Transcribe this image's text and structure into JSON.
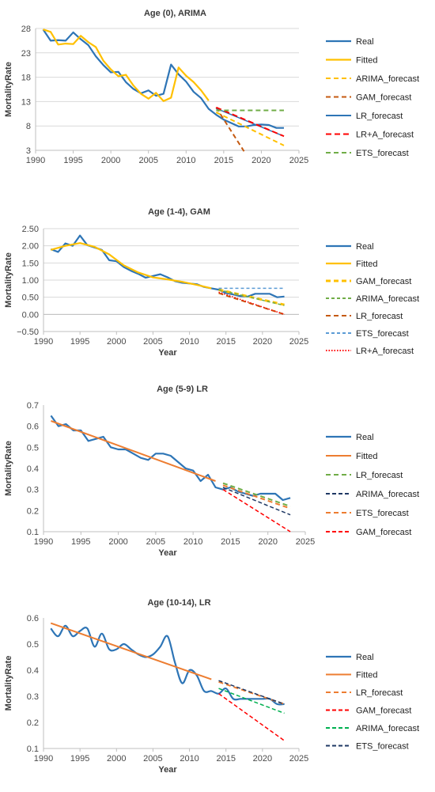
{
  "chart_data": [
    {
      "type": "line",
      "title": "Age (0), ARIMA",
      "ylabel": "MortalityRate",
      "xlabel": "",
      "xlim": [
        1990,
        2025
      ],
      "ylim": [
        3,
        28
      ],
      "xticks": [
        "1990",
        "1995",
        "2000",
        "2005",
        "2010",
        "2015",
        "2020",
        "2025"
      ],
      "yticks": [
        "3",
        "8",
        "13",
        "18",
        "23",
        "28"
      ],
      "grid": "horizontal",
      "legend_position": "right",
      "series": [
        {
          "name": "Real",
          "color": "#2e75b6",
          "dash": "solid",
          "width": 2.2,
          "x": [
            1991,
            1992,
            1993,
            1994,
            1995,
            1996,
            1997,
            1998,
            1999,
            2000,
            2001,
            2002,
            2003,
            2004,
            2005,
            2006,
            2007,
            2008,
            2009,
            2010,
            2011,
            2012,
            2013,
            2014,
            2015,
            2016,
            2017,
            2018,
            2019,
            2020,
            2021,
            2022,
            2023
          ],
          "y": [
            27.8,
            25.5,
            25.6,
            25.5,
            27.2,
            25.8,
            24.6,
            22.3,
            20.5,
            19.0,
            19.1,
            17.0,
            15.6,
            14.7,
            15.3,
            14.2,
            14.6,
            20.6,
            18.6,
            17.1,
            15.0,
            13.7,
            11.5,
            10.3,
            9.3,
            8.6,
            7.9,
            7.9,
            8.2,
            8.3,
            8.2,
            7.6,
            7.6
          ]
        },
        {
          "name": "Fitted",
          "color": "#ffc000",
          "dash": "solid",
          "width": 2.2,
          "x": [
            1991,
            1992,
            1993,
            1994,
            1995,
            1996,
            1997,
            1998,
            1999,
            2000,
            2001,
            2002,
            2003,
            2004,
            2005,
            2006,
            2007,
            2008,
            2009,
            2010,
            2011,
            2012,
            2013
          ],
          "y": [
            27.8,
            27.3,
            24.7,
            24.9,
            24.8,
            26.5,
            25.2,
            24.2,
            21.4,
            19.6,
            18.2,
            18.5,
            16.3,
            14.6,
            13.6,
            14.8,
            13.1,
            13.8,
            20.0,
            18.3,
            17.0,
            15.3,
            13.2
          ]
        },
        {
          "name": "ARIMA_forecast",
          "color": "#ffc000",
          "dash": "6,4",
          "width": 2,
          "x": [
            2014,
            2023
          ],
          "y": [
            10.8,
            4.0
          ]
        },
        {
          "name": "GAM_forecast",
          "color": "#c55a11",
          "dash": "6,4",
          "width": 2,
          "x": [
            2014,
            2017.7
          ],
          "y": [
            11.8,
            2.8
          ]
        },
        {
          "name": "LR_forecast",
          "color": "#2e75b6",
          "dash": "solid",
          "width": 1.5,
          "x": [
            2014,
            2023
          ],
          "y": [
            11.6,
            5.9
          ]
        },
        {
          "name": "LR+A_forecast",
          "color": "#ff0000",
          "dash": "7,4",
          "width": 2,
          "x": [
            2014,
            2023
          ],
          "y": [
            11.8,
            5.9
          ]
        },
        {
          "name": "ETS_forecast",
          "color": "#70ad47",
          "dash": "6,4",
          "width": 2,
          "x": [
            2014,
            2023
          ],
          "y": [
            11.2,
            11.2
          ]
        }
      ]
    },
    {
      "type": "line",
      "title": "Age (1-4), GAM",
      "ylabel": "MortalityRate",
      "xlabel": "Year",
      "xlim": [
        1990,
        2025
      ],
      "ylim": [
        -0.5,
        2.5
      ],
      "xticks": [
        "1990",
        "1995",
        "2000",
        "2005",
        "2010",
        "2015",
        "2020",
        "2025"
      ],
      "yticks": [
        "−0.50",
        "0.00",
        "0.50",
        "1.00",
        "1.50",
        "2.00",
        "2.50"
      ],
      "grid": "horizontal",
      "legend_position": "right",
      "series": [
        {
          "name": "Real",
          "color": "#2e75b6",
          "dash": "solid",
          "width": 2.2,
          "x": [
            1991,
            1992,
            1993,
            1994,
            1995,
            1996,
            1997,
            1998,
            1999,
            2000,
            2001,
            2002,
            2003,
            2004,
            2005,
            2006,
            2007,
            2008,
            2009,
            2010,
            2011,
            2012,
            2013,
            2014,
            2015,
            2016,
            2017,
            2018,
            2019,
            2020,
            2021,
            2022,
            2023
          ],
          "y": [
            1.9,
            1.82,
            2.07,
            2.0,
            2.3,
            2.02,
            1.95,
            1.88,
            1.58,
            1.55,
            1.38,
            1.27,
            1.18,
            1.07,
            1.12,
            1.17,
            1.08,
            0.97,
            0.92,
            0.9,
            0.88,
            0.8,
            0.76,
            0.72,
            0.62,
            0.58,
            0.53,
            0.52,
            0.6,
            0.6,
            0.6,
            0.5,
            0.52
          ]
        },
        {
          "name": "Fitted",
          "color": "#ffc000",
          "dash": "solid",
          "width": 2.2,
          "x": [
            1991,
            1993,
            1995,
            1997,
            1999,
            2001,
            2003,
            2005,
            2007,
            2009,
            2011,
            2013
          ],
          "y": [
            1.88,
            2.0,
            2.08,
            1.97,
            1.75,
            1.43,
            1.22,
            1.08,
            1.02,
            0.95,
            0.86,
            0.76
          ]
        },
        {
          "name": "GAM_forecast",
          "color": "#ffc000",
          "dash": "6,4",
          "width": 3,
          "x": [
            2014,
            2023
          ],
          "y": [
            0.72,
            0.28
          ]
        },
        {
          "name": "ARIMA_forecast",
          "color": "#70ad47",
          "dash": "4,3",
          "width": 1.5,
          "x": [
            2014,
            2023
          ],
          "y": [
            0.72,
            0.26
          ]
        },
        {
          "name": "LR_forecast",
          "color": "#c55a11",
          "dash": "6,4",
          "width": 2,
          "x": [
            2014,
            2023
          ],
          "y": [
            0.62,
            0.0
          ]
        },
        {
          "name": "ETS_forecast",
          "color": "#5b9bd5",
          "dash": "4,3",
          "width": 1.5,
          "x": [
            2014,
            2023
          ],
          "y": [
            0.76,
            0.76
          ]
        },
        {
          "name": "LR+A_forecast",
          "color": "#ff0000",
          "dash": "1.5,2",
          "width": 1.5,
          "x": [
            2014,
            2023
          ],
          "y": [
            0.65,
            0.0
          ]
        }
      ]
    },
    {
      "type": "line",
      "title": "Age (5-9) LR",
      "ylabel": "MortalityRate",
      "xlabel": "Year",
      "xlim": [
        1990,
        2025
      ],
      "ylim": [
        0.1,
        0.7
      ],
      "xticks": [
        "1990",
        "1995",
        "2000",
        "2005",
        "2010",
        "2015",
        "2020",
        "2025"
      ],
      "yticks": [
        "0.1",
        "0.2",
        "0.3",
        "0.4",
        "0.5",
        "0.6",
        "0.7"
      ],
      "grid": "none",
      "legend_position": "right",
      "series": [
        {
          "name": "Real",
          "color": "#2e75b6",
          "dash": "solid",
          "width": 2.2,
          "x": [
            1991,
            1992,
            1993,
            1994,
            1995,
            1996,
            1997,
            1998,
            1999,
            2000,
            2001,
            2002,
            2003,
            2004,
            2005,
            2006,
            2007,
            2008,
            2009,
            2010,
            2011,
            2012,
            2013,
            2014,
            2015,
            2016,
            2017,
            2018,
            2019,
            2020,
            2021,
            2022,
            2023
          ],
          "y": [
            0.65,
            0.6,
            0.61,
            0.58,
            0.58,
            0.53,
            0.54,
            0.55,
            0.5,
            0.49,
            0.49,
            0.47,
            0.45,
            0.44,
            0.47,
            0.47,
            0.46,
            0.43,
            0.4,
            0.39,
            0.34,
            0.37,
            0.31,
            0.3,
            0.31,
            0.29,
            0.28,
            0.27,
            0.28,
            0.28,
            0.28,
            0.25,
            0.26
          ]
        },
        {
          "name": "Fitted",
          "color": "#ed7d31",
          "dash": "solid",
          "width": 2,
          "x": [
            1991,
            2013
          ],
          "y": [
            0.625,
            0.34
          ]
        },
        {
          "name": "LR_forecast",
          "color": "#70ad47",
          "dash": "6,4",
          "width": 2,
          "x": [
            2014,
            2023
          ],
          "y": [
            0.33,
            0.22
          ]
        },
        {
          "name": "ARIMA_forecast",
          "color": "#1f3864",
          "dash": "5,3",
          "width": 1.5,
          "x": [
            2014,
            2023
          ],
          "y": [
            0.31,
            0.18
          ]
        },
        {
          "name": "ETS_forecast",
          "color": "#ed7d31",
          "dash": "6,4",
          "width": 2,
          "x": [
            2014,
            2023
          ],
          "y": [
            0.32,
            0.21
          ]
        },
        {
          "name": "GAM_forecast",
          "color": "#ff0000",
          "dash": "5,3",
          "width": 1.5,
          "x": [
            2014,
            2023
          ],
          "y": [
            0.3,
            0.1
          ]
        }
      ]
    },
    {
      "type": "line",
      "title": "Age (10-14), LR",
      "ylabel": "MortalityRate",
      "xlabel": "Year",
      "xlim": [
        1990,
        2025
      ],
      "ylim": [
        0.1,
        0.6
      ],
      "xticks": [
        "1990",
        "1995",
        "2000",
        "2005",
        "2010",
        "2015",
        "2020",
        "2025"
      ],
      "yticks": [
        "0.1",
        "0.2",
        "0.3",
        "0.4",
        "0.5",
        "0.6"
      ],
      "grid": "none",
      "legend_position": "right",
      "series": [
        {
          "name": "Real",
          "color": "#2e75b6",
          "dash": "solid",
          "width": 2.2,
          "smooth": true,
          "x": [
            1991,
            1992,
            1993,
            1994,
            1995,
            1996,
            1997,
            1998,
            1999,
            2000,
            2001,
            2002,
            2003,
            2004,
            2005,
            2006,
            2007,
            2008,
            2009,
            2010,
            2011,
            2012,
            2013,
            2014,
            2015,
            2016,
            2017,
            2018,
            2019,
            2020,
            2021,
            2022,
            2023
          ],
          "y": [
            0.56,
            0.53,
            0.57,
            0.53,
            0.55,
            0.56,
            0.49,
            0.54,
            0.48,
            0.48,
            0.5,
            0.48,
            0.46,
            0.45,
            0.46,
            0.49,
            0.53,
            0.43,
            0.35,
            0.4,
            0.38,
            0.32,
            0.32,
            0.31,
            0.33,
            0.29,
            0.29,
            0.29,
            0.29,
            0.29,
            0.29,
            0.27,
            0.27
          ]
        },
        {
          "name": "Fitted",
          "color": "#ed7d31",
          "dash": "solid",
          "width": 2,
          "x": [
            1991,
            2013
          ],
          "y": [
            0.58,
            0.365
          ]
        },
        {
          "name": "LR_forecast",
          "color": "#ed7d31",
          "dash": "6,4",
          "width": 2,
          "x": [
            2014,
            2023
          ],
          "y": [
            0.355,
            0.27
          ]
        },
        {
          "name": "GAM_forecast",
          "color": "#ff0000",
          "dash": "5,3",
          "width": 1.5,
          "x": [
            2014,
            2023
          ],
          "y": [
            0.31,
            0.13
          ]
        },
        {
          "name": "ARIMA_forecast",
          "color": "#00b050",
          "dash": "5,3",
          "width": 1.5,
          "x": [
            2014,
            2023
          ],
          "y": [
            0.33,
            0.235
          ]
        },
        {
          "name": "ETS_forecast",
          "color": "#1f3864",
          "dash": "5,3",
          "width": 1.5,
          "x": [
            2014,
            2023
          ],
          "y": [
            0.36,
            0.27
          ]
        }
      ]
    }
  ]
}
